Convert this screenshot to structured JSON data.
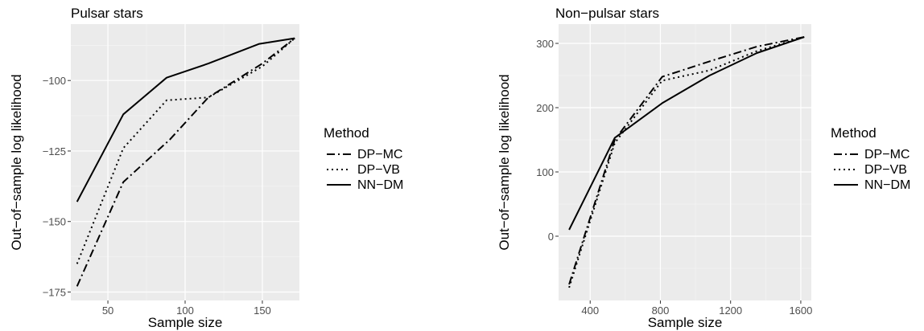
{
  "chart_data": [
    {
      "type": "line",
      "title": "Pulsar stars",
      "xlabel": "Sample size",
      "ylabel": "Out−of−sample log likelihood",
      "xlim": [
        26,
        174
      ],
      "ylim": [
        -178,
        -80
      ],
      "xticks": [
        50,
        100,
        150
      ],
      "yticks": [
        -175,
        -150,
        -125,
        -100
      ],
      "grid": true,
      "legend": {
        "title": "Method",
        "placement": "right",
        "entries": [
          "DP−MC",
          "DP−VB",
          "NN−DM"
        ]
      },
      "series": [
        {
          "name": "DP−MC",
          "dash": "dashdot",
          "x": [
            30,
            60,
            90,
            115,
            150,
            171
          ],
          "y": [
            -173,
            -136,
            -121,
            -106,
            -94,
            -85
          ]
        },
        {
          "name": "DP−VB",
          "dash": "dotted",
          "x": [
            30,
            60,
            88,
            115,
            150,
            171
          ],
          "y": [
            -165,
            -124,
            -107,
            -106,
            -95,
            -85
          ]
        },
        {
          "name": "NN−DM",
          "dash": "solid",
          "x": [
            30,
            60,
            88,
            115,
            148,
            171
          ],
          "y": [
            -143,
            -112,
            -99,
            -94,
            -87,
            -85
          ]
        }
      ]
    },
    {
      "type": "line",
      "title": "Non−pulsar stars",
      "xlabel": "Sample size",
      "ylabel": "Out−of−sample log likelihood",
      "xlim": [
        220,
        1660
      ],
      "ylim": [
        -100,
        330
      ],
      "xticks": [
        400,
        800,
        1200,
        1600
      ],
      "yticks": [
        0,
        100,
        200,
        300
      ],
      "grid": true,
      "legend": {
        "title": "Method",
        "placement": "right",
        "entries": [
          "DP−MC",
          "DP−VB",
          "NN−DM"
        ]
      },
      "series": [
        {
          "name": "DP−MC",
          "dash": "dashdot",
          "x": [
            280,
            540,
            810,
            1080,
            1350,
            1620
          ],
          "y": [
            -75,
            150,
            248,
            272,
            295,
            310
          ]
        },
        {
          "name": "DP−VB",
          "dash": "dotted",
          "x": [
            280,
            540,
            810,
            1080,
            1350,
            1620
          ],
          "y": [
            -80,
            145,
            242,
            258,
            288,
            310
          ]
        },
        {
          "name": "NN−DM",
          "dash": "solid",
          "x": [
            280,
            540,
            810,
            1080,
            1350,
            1620
          ],
          "y": [
            10,
            153,
            207,
            250,
            285,
            310
          ]
        }
      ]
    }
  ]
}
